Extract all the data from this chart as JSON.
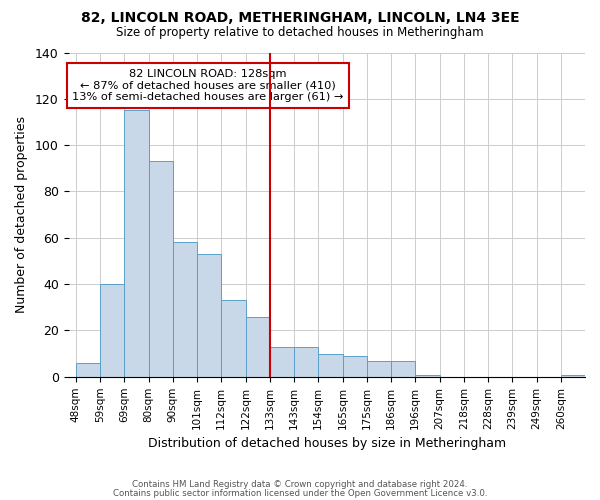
{
  "title": "82, LINCOLN ROAD, METHERINGHAM, LINCOLN, LN4 3EE",
  "subtitle": "Size of property relative to detached houses in Metheringham",
  "xlabel": "Distribution of detached houses by size in Metheringham",
  "ylabel": "Number of detached properties",
  "bin_labels": [
    "48sqm",
    "59sqm",
    "69sqm",
    "80sqm",
    "90sqm",
    "101sqm",
    "112sqm",
    "122sqm",
    "133sqm",
    "143sqm",
    "154sqm",
    "165sqm",
    "175sqm",
    "186sqm",
    "196sqm",
    "207sqm",
    "218sqm",
    "228sqm",
    "239sqm",
    "249sqm",
    "260sqm"
  ],
  "bar_heights": [
    6,
    40,
    115,
    93,
    58,
    53,
    33,
    26,
    13,
    13,
    10,
    9,
    7,
    7,
    1,
    0,
    0,
    0,
    0,
    0,
    1
  ],
  "bar_color": "#c8d8e8",
  "bar_edge_color": "#5a9fc8",
  "ylim": [
    0,
    140
  ],
  "yticks": [
    0,
    20,
    40,
    60,
    80,
    100,
    120,
    140
  ],
  "vline_x": 8.0,
  "vline_color": "#cc0000",
  "annotation_title": "82 LINCOLN ROAD: 128sqm",
  "annotation_line1": "← 87% of detached houses are smaller (410)",
  "annotation_line2": "13% of semi-detached houses are larger (61) →",
  "annotation_box_color": "#ffffff",
  "annotation_box_edge": "#cc0000",
  "footer1": "Contains HM Land Registry data © Crown copyright and database right 2024.",
  "footer2": "Contains public sector information licensed under the Open Government Licence v3.0.",
  "background_color": "#ffffff"
}
